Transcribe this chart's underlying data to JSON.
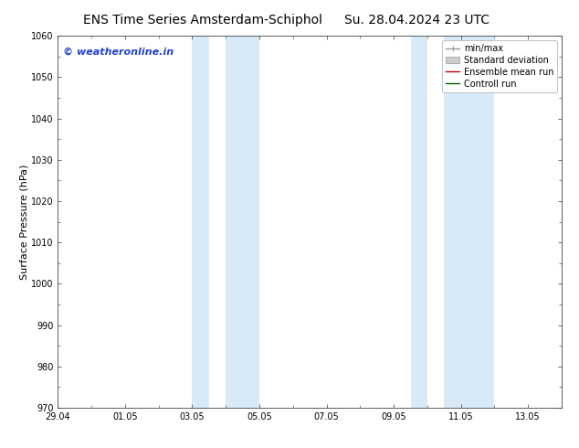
{
  "title_left": "ENS Time Series Amsterdam-Schiphol",
  "title_right": "Su. 28.04.2024 23 UTC",
  "ylabel": "Surface Pressure (hPa)",
  "ylim": [
    970,
    1060
  ],
  "yticks": [
    970,
    980,
    990,
    1000,
    1010,
    1020,
    1030,
    1040,
    1050,
    1060
  ],
  "xlim_start": 0.0,
  "xlim_end": 15.0,
  "xtick_positions": [
    0,
    2,
    4,
    6,
    8,
    10,
    12,
    14
  ],
  "xtick_labels": [
    "29.04",
    "01.05",
    "03.05",
    "05.05",
    "07.05",
    "09.05",
    "11.05",
    "13.05"
  ],
  "shaded_bands": [
    {
      "x_start": 4.0,
      "x_end": 4.5
    },
    {
      "x_start": 5.0,
      "x_end": 6.0
    },
    {
      "x_start": 10.5,
      "x_end": 11.0
    },
    {
      "x_start": 11.5,
      "x_end": 13.0
    }
  ],
  "shade_color": "#d8eaf7",
  "watermark_text": "© weatheronline.in",
  "watermark_color": "#2244cc",
  "legend_items": [
    {
      "label": "min/max",
      "color": "#999999",
      "lw": 1.0,
      "style": "minmax"
    },
    {
      "label": "Standard deviation",
      "color": "#cccccc",
      "lw": 5,
      "style": "band"
    },
    {
      "label": "Ensemble mean run",
      "color": "#cc0000",
      "lw": 1.0,
      "style": "line"
    },
    {
      "label": "Controll run",
      "color": "#006600",
      "lw": 1.0,
      "style": "line"
    }
  ],
  "bg_color": "#ffffff",
  "plot_bg_color": "#ffffff",
  "title_fontsize": 10,
  "tick_fontsize": 7,
  "legend_fontsize": 7,
  "ylabel_fontsize": 8
}
